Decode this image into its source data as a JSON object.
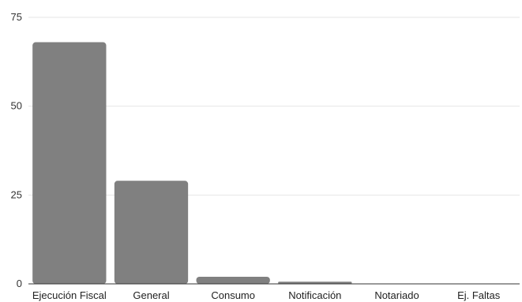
{
  "chart_data": {
    "type": "bar",
    "title": "",
    "xlabel": "",
    "ylabel": "",
    "categories": [
      "Ejecución Fiscal",
      "General",
      "Consumo",
      "Notificación",
      "Notariado",
      "Ej. Faltas"
    ],
    "values": [
      68,
      29,
      2,
      0.6,
      0.1,
      0.1
    ],
    "ylim": [
      0,
      75
    ],
    "yticks": [
      0,
      25,
      50,
      75
    ],
    "grid": true,
    "legend": "none",
    "bar_color": "#808080"
  }
}
